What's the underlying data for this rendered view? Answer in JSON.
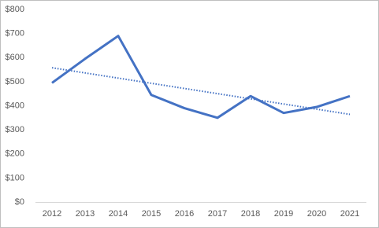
{
  "chart_data": {
    "type": "line",
    "categories": [
      "2012",
      "2013",
      "2014",
      "2015",
      "2016",
      "2017",
      "2018",
      "2019",
      "2020",
      "2021"
    ],
    "series": [
      {
        "color": "#4472c4",
        "values": [
          495,
          595,
          690,
          445,
          390,
          350,
          440,
          370,
          395,
          440
        ]
      }
    ],
    "ylim": [
      0,
      800
    ],
    "yticks": [
      {
        "value": 0,
        "label": "$0"
      },
      {
        "value": 100,
        "label": "$100"
      },
      {
        "value": 200,
        "label": "$200"
      },
      {
        "value": 300,
        "label": "$300"
      },
      {
        "value": 400,
        "label": "$400"
      },
      {
        "value": 500,
        "label": "$500"
      },
      {
        "value": 600,
        "label": "$600"
      },
      {
        "value": 700,
        "label": "$700"
      },
      {
        "value": 800,
        "label": "$800"
      }
    ],
    "trendline": "linear",
    "grid": false
  }
}
